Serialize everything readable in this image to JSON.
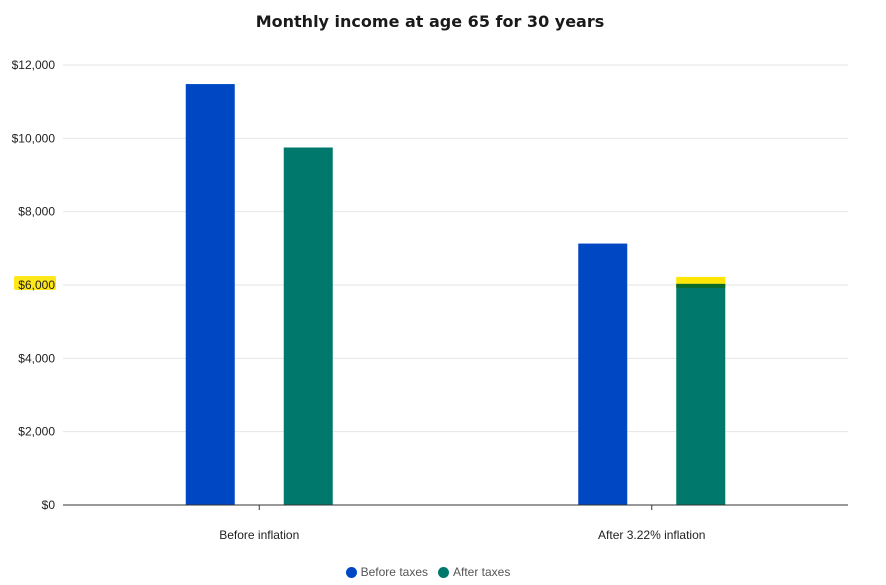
{
  "chart_data": {
    "type": "bar",
    "title": "Monthly income at age 65 for 30 years",
    "categories": [
      "Before inflation",
      "After 3.22% inflation"
    ],
    "series": [
      {
        "name": "Before taxes",
        "color": "#0047c4",
        "values": [
          11480,
          7130
        ]
      },
      {
        "name": "After taxes",
        "color": "#00786b",
        "values": [
          9750,
          6030
        ]
      }
    ],
    "ylim": [
      0,
      12000
    ],
    "yticks": [
      "$0",
      "$2,000",
      "$4,000",
      "$6,000",
      "$8,000",
      "$10,000",
      "$12,000"
    ],
    "ytick_values": [
      0,
      2000,
      4000,
      6000,
      8000,
      10000,
      12000
    ],
    "grid": true,
    "legend": "bottom-center",
    "highlights": {
      "color": "#ffe600",
      "items": [
        "$6,000 tick label",
        "top of After taxes bar in After 3.22% inflation"
      ]
    }
  }
}
